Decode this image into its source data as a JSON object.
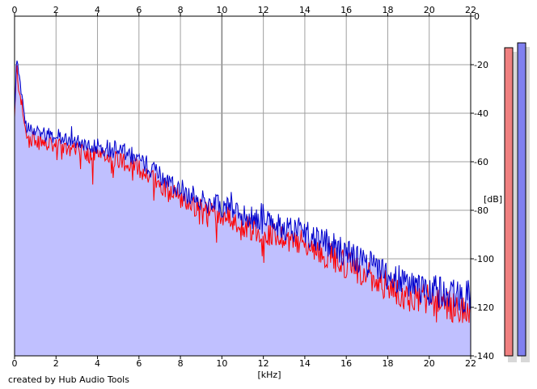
{
  "footer": "created by Hub Audio Tools",
  "chart_data": {
    "type": "area",
    "xlabel": "[kHz]",
    "ylabel": "[dB]",
    "xlim": [
      0,
      22
    ],
    "ylim": [
      -140,
      0
    ],
    "x_ticks": [
      0,
      2,
      4,
      6,
      8,
      10,
      12,
      14,
      16,
      18,
      20,
      22
    ],
    "y_ticks": [
      0,
      -20,
      -40,
      -60,
      -80,
      -100,
      -120,
      -140
    ],
    "grid": true,
    "colors": {
      "fill": "#c0c0ff",
      "series_red": "#ff0000",
      "series_blue": "#0000cc",
      "meter_red": "#f08080",
      "meter_blue": "#8080f0"
    },
    "series": [
      {
        "color": "red",
        "x": [
          0,
          0.1,
          0.2,
          0.3,
          0.5,
          0.75,
          1,
          1.5,
          2,
          3,
          4,
          5,
          6,
          7,
          8,
          9,
          10,
          11,
          12,
          13,
          14,
          15,
          16,
          17,
          18,
          19,
          20,
          21,
          22
        ],
        "y": [
          -42,
          -20,
          -28,
          -33,
          -46,
          -50,
          -50,
          -52,
          -53,
          -55,
          -57,
          -58,
          -62,
          -68,
          -74,
          -79,
          -81,
          -85,
          -88,
          -90,
          -93,
          -97,
          -101,
          -105,
          -110,
          -114,
          -116,
          -118,
          -119
        ]
      },
      {
        "color": "blue",
        "x": [
          0,
          0.1,
          0.2,
          0.3,
          0.5,
          0.75,
          1,
          1.5,
          2,
          3,
          4,
          5,
          6,
          7,
          8,
          9,
          10,
          11,
          12,
          13,
          14,
          15,
          16,
          17,
          18,
          19,
          20,
          21,
          22
        ],
        "y": [
          -40,
          -18,
          -26,
          -31,
          -44,
          -48,
          -47,
          -49,
          -50,
          -52,
          -54,
          -56,
          -60,
          -66,
          -72,
          -77,
          -79,
          -83,
          -86,
          -88,
          -90,
          -94,
          -99,
          -103,
          -108,
          -112,
          -114,
          -116,
          -117
        ]
      }
    ],
    "meters": {
      "range": [
        -140,
        0
      ],
      "red_level": -13,
      "blue_level": -11
    }
  }
}
